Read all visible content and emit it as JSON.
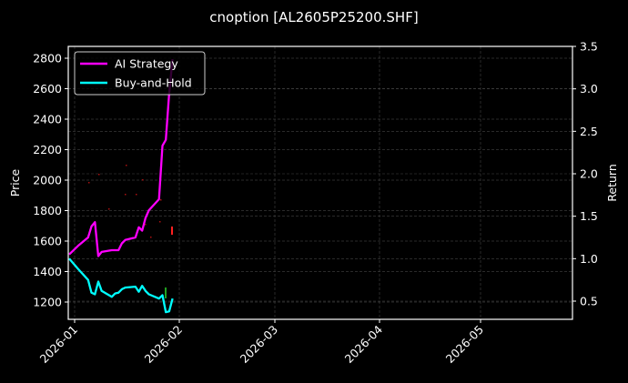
{
  "chart_data": {
    "type": "line",
    "title": "cnoption [AL2605P25200.SHF]",
    "xlabel": "",
    "ylabel": "Price",
    "ylabel_right": "Return",
    "x_ticks": [
      "2026-01",
      "2026-02",
      "2026-03",
      "2026-04",
      "2026-05"
    ],
    "y_ticks_left": [
      1200,
      1400,
      1600,
      1800,
      2000,
      2200,
      2400,
      2600,
      2800
    ],
    "y_ticks_right": [
      0.5,
      1.0,
      1.5,
      2.0,
      2.5,
      3.0,
      3.5
    ],
    "ylim_left": [
      1080,
      2880
    ],
    "ylim_right": [
      0.3,
      3.5
    ],
    "grid": true,
    "legend_position": "upper left",
    "legend": [
      "AI Strategy",
      "Buy-and-Hold"
    ],
    "series": [
      {
        "name": "AI Strategy",
        "axis": "right",
        "color": "#ff00ff",
        "x": [
          "2025-12-31",
          "2026-01-02",
          "2026-01-05",
          "2026-01-06",
          "2026-01-07",
          "2026-01-08",
          "2026-01-09",
          "2026-01-12",
          "2026-01-13",
          "2026-01-14",
          "2026-01-15",
          "2026-01-16",
          "2026-01-19",
          "2026-01-20",
          "2026-01-21",
          "2026-01-22",
          "2026-01-23",
          "2026-01-26",
          "2026-01-27",
          "2026-01-28",
          "2026-01-29",
          "2026-01-30"
        ],
        "values": [
          1.05,
          1.15,
          1.25,
          1.38,
          1.43,
          1.03,
          1.08,
          1.1,
          1.1,
          1.1,
          1.18,
          1.22,
          1.25,
          1.37,
          1.33,
          1.48,
          1.57,
          1.7,
          2.33,
          2.4,
          2.95,
          3.35
        ]
      },
      {
        "name": "Buy-and-Hold",
        "axis": "right",
        "color": "#00ffff",
        "x": [
          "2025-12-31",
          "2026-01-02",
          "2026-01-05",
          "2026-01-06",
          "2026-01-07",
          "2026-01-08",
          "2026-01-09",
          "2026-01-12",
          "2026-01-13",
          "2026-01-14",
          "2026-01-15",
          "2026-01-16",
          "2026-01-19",
          "2026-01-20",
          "2026-01-21",
          "2026-01-22",
          "2026-01-23",
          "2026-01-26",
          "2026-01-27",
          "2026-01-28",
          "2026-01-29",
          "2026-01-30"
        ],
        "values": [
          1.0,
          0.88,
          0.75,
          0.6,
          0.58,
          0.73,
          0.62,
          0.55,
          0.59,
          0.6,
          0.64,
          0.66,
          0.67,
          0.61,
          0.68,
          0.62,
          0.58,
          0.53,
          0.57,
          0.37,
          0.38,
          0.53
        ]
      }
    ],
    "markers": [
      {
        "type": "sell",
        "color": "#ff2020",
        "x": "2026-01-31",
        "price": 1660
      },
      {
        "type": "buy",
        "color": "#20a020",
        "x": "2026-01-29",
        "price": 1230
      }
    ]
  }
}
